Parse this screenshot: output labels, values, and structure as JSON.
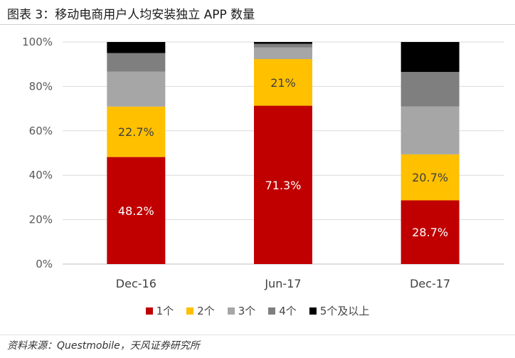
{
  "title": "图表 3：移动电商用户人均安装独立 APP 数量",
  "source": "资料来源：Questmobile，天风证券研究所",
  "chart_data": {
    "type": "bar",
    "stacked": true,
    "categories": [
      "Dec-16",
      "Jun-17",
      "Dec-17"
    ],
    "series": [
      {
        "name": "1个",
        "color": "#c00000",
        "values": [
          48.2,
          71.3,
          28.7
        ]
      },
      {
        "name": "2个",
        "color": "#ffc000",
        "values": [
          22.7,
          21.0,
          20.7
        ]
      },
      {
        "name": "3个",
        "color": "#a6a6a6",
        "values": [
          15.8,
          5.2,
          21.6
        ]
      },
      {
        "name": "4个",
        "color": "#7f7f7f",
        "values": [
          8.3,
          1.7,
          15.5
        ]
      },
      {
        "name": "5个及以上",
        "color": "#000000",
        "values": [
          5.0,
          0.8,
          13.5
        ]
      }
    ],
    "data_labels": [
      {
        "series": 0,
        "category": 0,
        "text": "48.2%"
      },
      {
        "series": 0,
        "category": 1,
        "text": "71.3%"
      },
      {
        "series": 0,
        "category": 2,
        "text": "28.7%"
      },
      {
        "series": 1,
        "category": 0,
        "text": "22.7%"
      },
      {
        "series": 1,
        "category": 1,
        "text": "21%"
      },
      {
        "series": 1,
        "category": 2,
        "text": "20.7%"
      }
    ],
    "yticks": [
      "0%",
      "20%",
      "40%",
      "60%",
      "80%",
      "100%"
    ],
    "ylim": [
      0,
      100
    ],
    "grid": true,
    "legend_position": "bottom"
  }
}
